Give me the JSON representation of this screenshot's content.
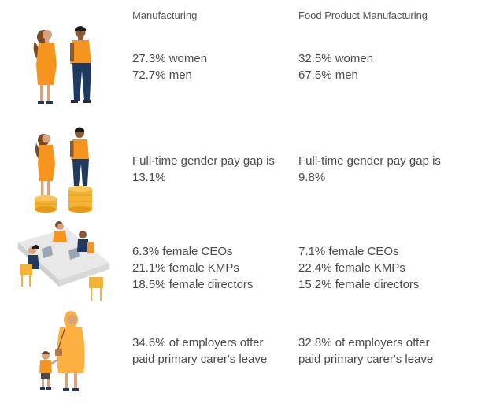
{
  "headers": {
    "col1": "Manufacturing",
    "col2": "Food Product Manufacturing"
  },
  "rows": [
    {
      "illustration": "man-and-woman-standing",
      "col1": [
        "27.3% women",
        "72.7% men"
      ],
      "col2": [
        "32.5% women",
        "67.5% men"
      ]
    },
    {
      "illustration": "man-and-woman-on-coin-stacks",
      "col1": [
        "Full-time gender pay gap is",
        "13.1%"
      ],
      "col2": [
        "Full-time gender pay gap is",
        "9.8%"
      ]
    },
    {
      "illustration": "people-at-boardroom-table",
      "col1": [
        "6.3% female CEOs",
        "21.1% female KMPs",
        "18.5% female directors"
      ],
      "col2": [
        "7.1% female CEOs",
        "22.4% female KMPs",
        "15.2% female directors"
      ]
    },
    {
      "illustration": "woman-holding-child-hand",
      "col1": [
        "34.6% of employers offer",
        "paid primary carer's leave"
      ],
      "col2": [
        "32.8% of employers offer",
        "paid primary carer's leave"
      ]
    }
  ],
  "colors": {
    "orange": "#f7941d",
    "light_orange": "#fbb040",
    "navy": "#1f3a5f",
    "skin": "#c98a5a",
    "dark_skin": "#8a5a35",
    "hair": "#6b3e1f",
    "gold": "#f5b335",
    "table": "#e6e6e6"
  }
}
